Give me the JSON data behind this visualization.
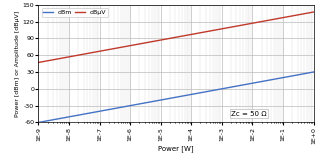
{
  "xmin": 1e-09,
  "xmax": 1.0,
  "ymin": -60,
  "ymax": 150,
  "xlabel": "Power [W]",
  "ylabel": "Power [dBm] or Amplitude [dBµV]",
  "line_dbm_color": "#4472c4",
  "line_dbuv_color": "#c0392b",
  "legend_dbm": "dBm",
  "legend_dbuv": "dBµV",
  "annotation": "Zc = 50 Ω",
  "Zc": 50,
  "yticks": [
    -60,
    -30,
    0,
    30,
    60,
    90,
    120,
    150
  ],
  "xtick_vals": [
    -9,
    -8,
    -7,
    -6,
    -5,
    -4,
    -3,
    -2,
    -1,
    0
  ],
  "background_color": "#ffffff",
  "major_grid_color": "#bbbbbb",
  "minor_grid_color": "#dddddd"
}
